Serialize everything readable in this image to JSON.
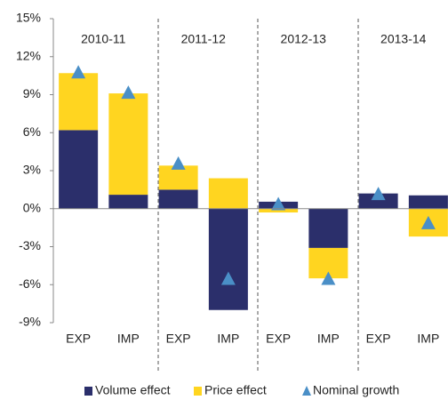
{
  "chart_data": {
    "type": "stacked_bar_with_markers",
    "groups": [
      "2010-11",
      "2011-12",
      "2012-13",
      "2013-14"
    ],
    "categories": [
      "EXP",
      "IMP",
      "EXP",
      "IMP",
      "EXP",
      "IMP",
      "EXP",
      "IMP"
    ],
    "series": [
      {
        "name": "Volume effect",
        "color": "#2b2f6b",
        "kind": "bar",
        "values": [
          6.2,
          1.1,
          1.5,
          -8.0,
          0.55,
          -3.1,
          1.2,
          1.05
        ]
      },
      {
        "name": "Price effect",
        "color": "#ffd520",
        "kind": "bar",
        "values": [
          4.5,
          8.0,
          1.9,
          2.4,
          -0.3,
          -2.4,
          0,
          -2.2
        ]
      },
      {
        "name": "Nominal growth",
        "color": "#4a8fc7",
        "kind": "marker",
        "values": [
          10.7,
          9.1,
          3.5,
          -5.6,
          0.3,
          -5.6,
          1.1,
          -1.2
        ]
      }
    ],
    "ylim": [
      -9,
      15
    ],
    "yticks": [
      {
        "value": -9,
        "label": "-9%"
      },
      {
        "value": -6,
        "label": "-6%"
      },
      {
        "value": -3,
        "label": "-3%"
      },
      {
        "value": 0,
        "label": "0%"
      },
      {
        "value": 3,
        "label": "3%"
      },
      {
        "value": 6,
        "label": "6%"
      },
      {
        "value": 9,
        "label": "9%"
      },
      {
        "value": 12,
        "label": "12%"
      },
      {
        "value": 15,
        "label": "15%"
      }
    ],
    "legend": "bottom"
  }
}
